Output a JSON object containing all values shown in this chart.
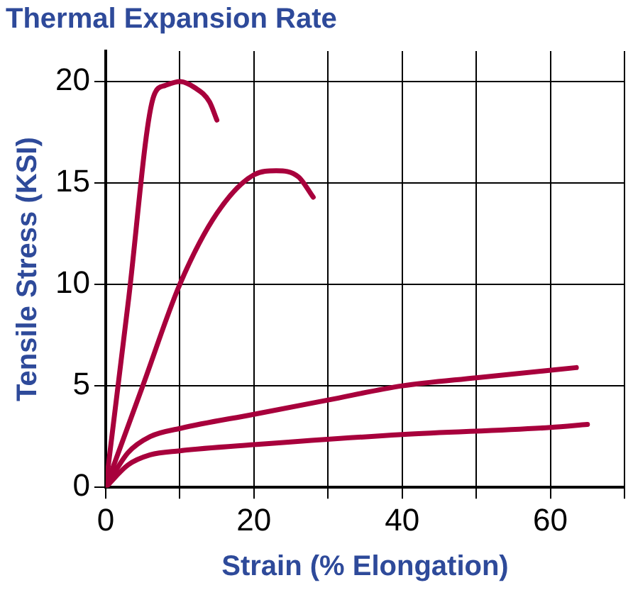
{
  "chart_data": {
    "type": "line",
    "title": "Thermal Expansion Rate",
    "xlabel": "Strain (% Elongation)",
    "ylabel": "Tensile Stress (KSI)",
    "xlim": [
      0,
      70
    ],
    "ylim": [
      0,
      21.5
    ],
    "xticks": [
      0,
      {
        "value": 10,
        "label": null
      },
      20,
      {
        "value": 30,
        "label": null
      },
      40,
      {
        "value": 50,
        "label": null
      },
      60,
      {
        "value": 70,
        "label": null
      }
    ],
    "yticks": [
      0,
      5,
      10,
      15,
      20
    ],
    "grid": true,
    "legend": false,
    "marker": "none",
    "line_style": "solid",
    "series": [
      {
        "color": "#a8003c",
        "x": [
          0,
          3,
          6.5,
          8,
          10,
          12,
          14,
          15
        ],
        "values": [
          0,
          9,
          19.3,
          19.8,
          20,
          19.7,
          19,
          18.1
        ]
      },
      {
        "color": "#a8003c",
        "x": [
          0,
          5,
          10,
          15,
          20,
          23,
          26,
          28
        ],
        "values": [
          0,
          5,
          10,
          13.5,
          15.4,
          15.6,
          15.3,
          14.3
        ]
      },
      {
        "color": "#a8003c",
        "x": [
          0,
          3,
          6,
          10,
          20,
          30,
          40,
          50,
          63.5
        ],
        "values": [
          0,
          1.7,
          2.5,
          2.9,
          3.6,
          4.3,
          5,
          5.4,
          5.9
        ]
      },
      {
        "color": "#a8003c",
        "x": [
          0,
          3,
          6,
          10,
          20,
          40,
          60,
          65
        ],
        "values": [
          0,
          1.1,
          1.6,
          1.8,
          2.1,
          2.6,
          2.95,
          3.1
        ]
      }
    ]
  }
}
